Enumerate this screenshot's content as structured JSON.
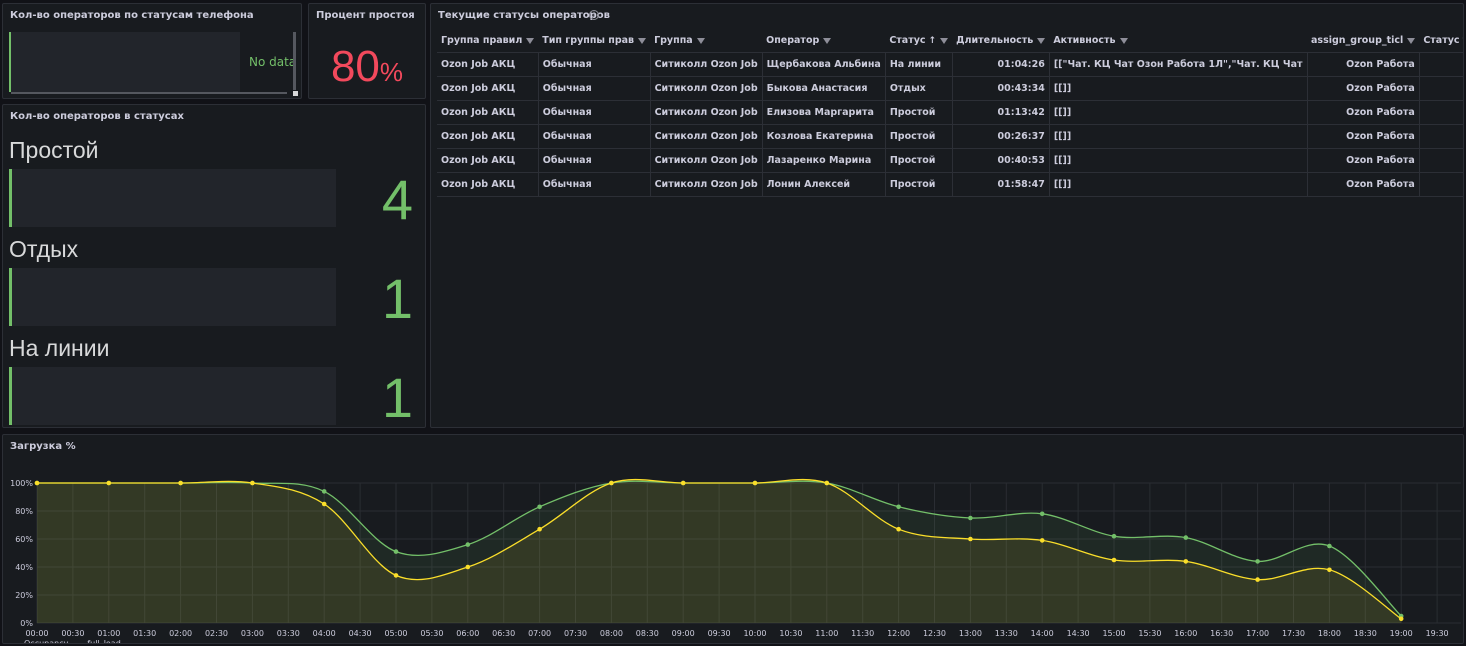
{
  "phone_panel": {
    "title": "Кол-во операторов по статусам телефона",
    "nodata": "No data"
  },
  "idle_panel": {
    "title": "Процент простоя",
    "value": "80",
    "unit": "%"
  },
  "status_panel": {
    "title": "Кол-во операторов в статусах",
    "rows": [
      {
        "label": "Простой",
        "value": "4"
      },
      {
        "label": "Отдых",
        "value": "1"
      },
      {
        "label": "На линии",
        "value": "1"
      }
    ]
  },
  "table_panel": {
    "title": "Текущие статусы операторов",
    "columns": [
      "Группа правил",
      "Тип группы прав",
      "Группа",
      "Оператор",
      "Статус",
      "Длительность",
      "Активность",
      "assign_group_ticl",
      "Статус теле"
    ],
    "rows": [
      [
        "Ozon Job АКЦ",
        "Обычная",
        "Ситиколл Ozon Job",
        "Щербакова Альбина",
        "На линии",
        "01:04:26",
        "[[\"Чат. КЦ Чат Озон Работа 1Л\",\"Чат. КЦ Чат",
        "Ozon Работа",
        ""
      ],
      [
        "Ozon Job АКЦ",
        "Обычная",
        "Ситиколл Ozon Job",
        "Быкова Анастасия",
        "Отдых",
        "00:43:34",
        "[[]]",
        "Ozon Работа",
        ""
      ],
      [
        "Ozon Job АКЦ",
        "Обычная",
        "Ситиколл Ozon Job",
        "Елизова Маргарита",
        "Простой",
        "01:13:42",
        "[[]]",
        "Ozon Работа",
        ""
      ],
      [
        "Ozon Job АКЦ",
        "Обычная",
        "Ситиколл Ozon Job",
        "Козлова Екатерина",
        "Простой",
        "00:26:37",
        "[[]]",
        "Ozon Работа",
        ""
      ],
      [
        "Ozon Job АКЦ",
        "Обычная",
        "Ситиколл Ozon Job",
        "Лазаренко Марина",
        "Простой",
        "00:40:53",
        "[[]]",
        "Ozon Работа",
        ""
      ],
      [
        "Ozon Job АКЦ",
        "Обычная",
        "Ситиколл Ozon Job",
        "Лонин Алексей",
        "Простой",
        "01:58:47",
        "[[]]",
        "Ozon Работа",
        ""
      ]
    ]
  },
  "chart_panel": {
    "title": "Загрузка %"
  },
  "chart_data": {
    "type": "area",
    "title": "Загрузка %",
    "x": [
      "00:00",
      "00:30",
      "01:00",
      "01:30",
      "02:00",
      "02:30",
      "03:00",
      "03:30",
      "04:00",
      "04:30",
      "05:00",
      "05:30",
      "06:00",
      "06:30",
      "07:00",
      "07:30",
      "08:00",
      "08:30",
      "09:00",
      "09:30",
      "10:00",
      "10:30",
      "11:00",
      "11:30",
      "12:00",
      "12:30",
      "13:00",
      "13:30",
      "14:00",
      "14:30",
      "15:00",
      "15:30",
      "16:00",
      "16:30",
      "17:00",
      "17:30",
      "18:00",
      "18:30",
      "19:00",
      "19:30"
    ],
    "y_ticks": [
      "0%",
      "20%",
      "40%",
      "60%",
      "80%",
      "100%"
    ],
    "ylim": [
      0,
      100
    ],
    "series": [
      {
        "name": "Occupancy",
        "color": "#73bf69",
        "points": [
          [
            "00:00",
            100
          ],
          [
            "01:00",
            100
          ],
          [
            "02:00",
            100
          ],
          [
            "03:00",
            100
          ],
          [
            "04:00",
            94
          ],
          [
            "05:00",
            51
          ],
          [
            "06:00",
            56
          ],
          [
            "07:00",
            83
          ],
          [
            "08:00",
            100
          ],
          [
            "09:00",
            100
          ],
          [
            "10:00",
            100
          ],
          [
            "11:00",
            100
          ],
          [
            "12:00",
            83
          ],
          [
            "13:00",
            75
          ],
          [
            "14:00",
            78
          ],
          [
            "15:00",
            62
          ],
          [
            "16:00",
            61
          ],
          [
            "17:00",
            44
          ],
          [
            "18:00",
            55
          ],
          [
            "19:00",
            5
          ]
        ]
      },
      {
        "name": "full_load",
        "color": "#fade2a",
        "points": [
          [
            "00:00",
            100
          ],
          [
            "01:00",
            100
          ],
          [
            "02:00",
            100
          ],
          [
            "03:00",
            100
          ],
          [
            "04:00",
            85
          ],
          [
            "05:00",
            34
          ],
          [
            "06:00",
            40
          ],
          [
            "07:00",
            67
          ],
          [
            "08:00",
            100
          ],
          [
            "09:00",
            100
          ],
          [
            "10:00",
            100
          ],
          [
            "11:00",
            100
          ],
          [
            "12:00",
            67
          ],
          [
            "13:00",
            60
          ],
          [
            "14:00",
            59
          ],
          [
            "15:00",
            45
          ],
          [
            "16:00",
            44
          ],
          [
            "17:00",
            31
          ],
          [
            "18:00",
            38
          ],
          [
            "19:00",
            3
          ]
        ]
      }
    ],
    "legend_position": "bottom-left",
    "grid": true
  }
}
